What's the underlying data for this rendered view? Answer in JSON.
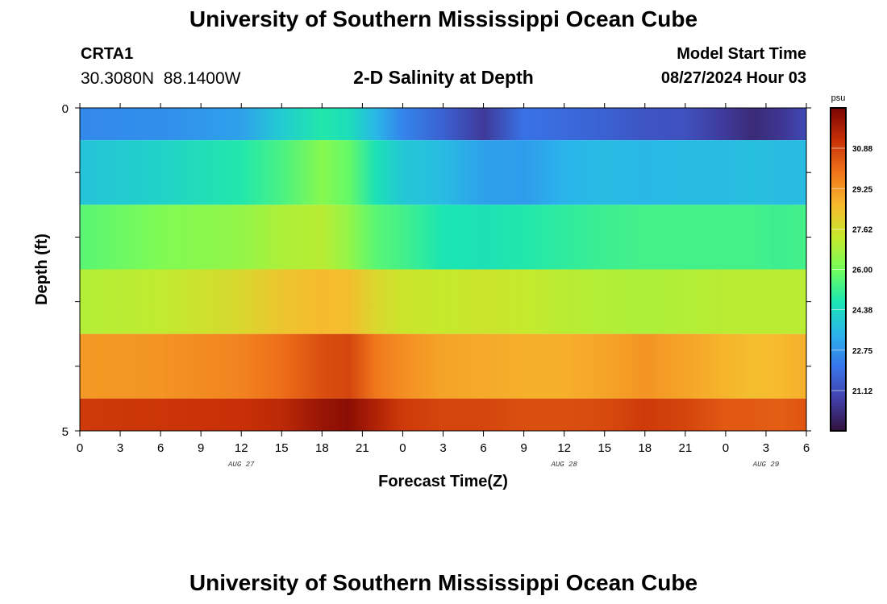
{
  "header": {
    "title": "University of Southern Mississippi Ocean Cube",
    "station_id": "CRTA1",
    "station_coords": "30.3080N  88.1400W",
    "plot_title": "2-D Salinity at Depth",
    "model_label": "Model Start Time",
    "model_time": "08/27/2024 Hour 03"
  },
  "footer": {
    "title": "University of Southern Mississippi Ocean Cube"
  },
  "chart_data": {
    "type": "heatmap",
    "title": "2-D Salinity at Depth",
    "xlabel": "Forecast Time(Z)",
    "ylabel": "Depth (ft)",
    "x_hours_since_aug27_00z": [
      0,
      54
    ],
    "x_tick_labels": [
      "0",
      "3",
      "6",
      "9",
      "12",
      "15",
      "18",
      "21",
      "0",
      "3",
      "6",
      "9",
      "12",
      "15",
      "18",
      "21",
      "0",
      "3",
      "6"
    ],
    "date_labels": [
      {
        "text": "AUG 27",
        "hour": 12
      },
      {
        "text": "AUG 28",
        "hour": 36
      },
      {
        "text": "AUG 29",
        "hour": 51
      }
    ],
    "y_range": [
      0,
      5
    ],
    "y_tick_labels": [
      {
        "value": 0,
        "text": "0"
      },
      {
        "value": 5,
        "text": "5"
      }
    ],
    "y_minor_ticks": [
      0,
      1,
      2,
      3,
      4,
      5
    ],
    "depth_layers": [
      {
        "top": 0.0,
        "bottom": 0.5
      },
      {
        "top": 0.5,
        "bottom": 1.5
      },
      {
        "top": 1.5,
        "bottom": 2.5
      },
      {
        "top": 2.5,
        "bottom": 3.5
      },
      {
        "top": 3.5,
        "bottom": 4.5
      },
      {
        "top": 4.5,
        "bottom": 5.0
      }
    ],
    "time_keypoints": [
      0,
      6,
      12,
      15,
      18,
      20,
      22,
      24,
      27,
      30,
      33,
      36,
      39,
      42,
      45,
      48,
      50,
      52,
      54
    ],
    "salinity_psu": [
      [
        22.5,
        22.6,
        23.0,
        24.0,
        24.8,
        24.5,
        23.5,
        22.4,
        21.6,
        20.6,
        22.0,
        21.8,
        21.6,
        21.3,
        21.2,
        20.6,
        20.2,
        20.5,
        21.0
      ],
      [
        23.8,
        24.2,
        24.8,
        25.4,
        26.3,
        25.8,
        24.6,
        23.9,
        23.6,
        23.0,
        22.9,
        23.4,
        23.6,
        23.5,
        23.6,
        23.6,
        23.7,
        23.6,
        23.6
      ],
      [
        25.6,
        26.2,
        26.5,
        26.9,
        27.1,
        26.5,
        25.6,
        25.3,
        24.7,
        24.6,
        24.8,
        25.0,
        25.2,
        25.3,
        25.3,
        25.3,
        25.3,
        25.2,
        25.3
      ],
      [
        27.0,
        27.2,
        27.8,
        28.3,
        28.6,
        28.5,
        27.8,
        27.4,
        27.3,
        27.4,
        27.3,
        27.1,
        27.0,
        26.9,
        27.0,
        27.1,
        27.1,
        27.1,
        27.1
      ],
      [
        29.2,
        29.3,
        29.6,
        30.0,
        30.6,
        30.8,
        29.8,
        29.4,
        29.0,
        28.9,
        28.8,
        28.8,
        29.0,
        29.3,
        29.0,
        28.7,
        28.5,
        28.6,
        28.8
      ],
      [
        31.0,
        31.1,
        31.2,
        31.4,
        32.0,
        32.2,
        31.6,
        31.0,
        30.8,
        30.8,
        30.6,
        30.6,
        30.7,
        31.0,
        30.8,
        30.4,
        30.4,
        30.3,
        30.5
      ]
    ],
    "colorbar": {
      "unit": "psu",
      "range": [
        19.5,
        32.5
      ],
      "ticks": [
        "30.88",
        "29.25",
        "27.62",
        "26.00",
        "24.38",
        "22.75",
        "21.12"
      ],
      "tick_values": [
        30.88,
        29.25,
        27.62,
        26.0,
        24.38,
        22.75,
        21.12
      ],
      "colormap": "turbo"
    }
  }
}
